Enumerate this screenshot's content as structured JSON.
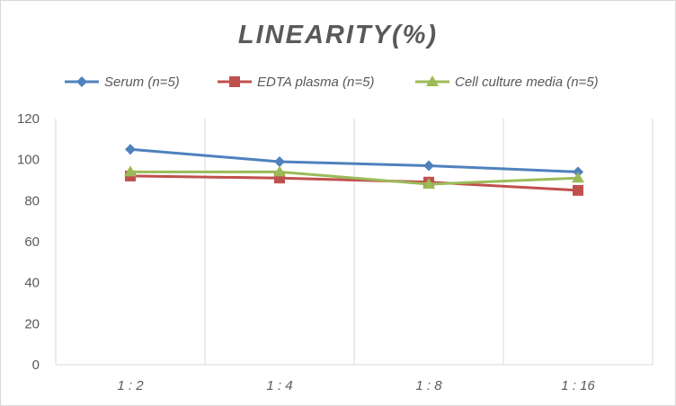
{
  "chart_data": {
    "type": "line",
    "title": "LINEARITY(%)",
    "xlabel": "",
    "ylabel": "",
    "categories": [
      "1:2",
      "1:4",
      "1:8",
      "1:16"
    ],
    "ylim": [
      0,
      120
    ],
    "yticks": [
      0,
      20,
      40,
      60,
      80,
      100,
      120
    ],
    "grid": "vertical",
    "legend": "top",
    "series": [
      {
        "name": "Serum (n=5)",
        "values": [
          105,
          99,
          97,
          94
        ],
        "color": "#4f81bd",
        "marker": "diamond"
      },
      {
        "name": "EDTA plasma (n=5)",
        "values": [
          92,
          91,
          89,
          85
        ],
        "color": "#c0504d",
        "marker": "square"
      },
      {
        "name": "Cell culture media (n=5)",
        "values": [
          94,
          94,
          88,
          91
        ],
        "color": "#9bbb59",
        "marker": "triangle"
      }
    ]
  }
}
